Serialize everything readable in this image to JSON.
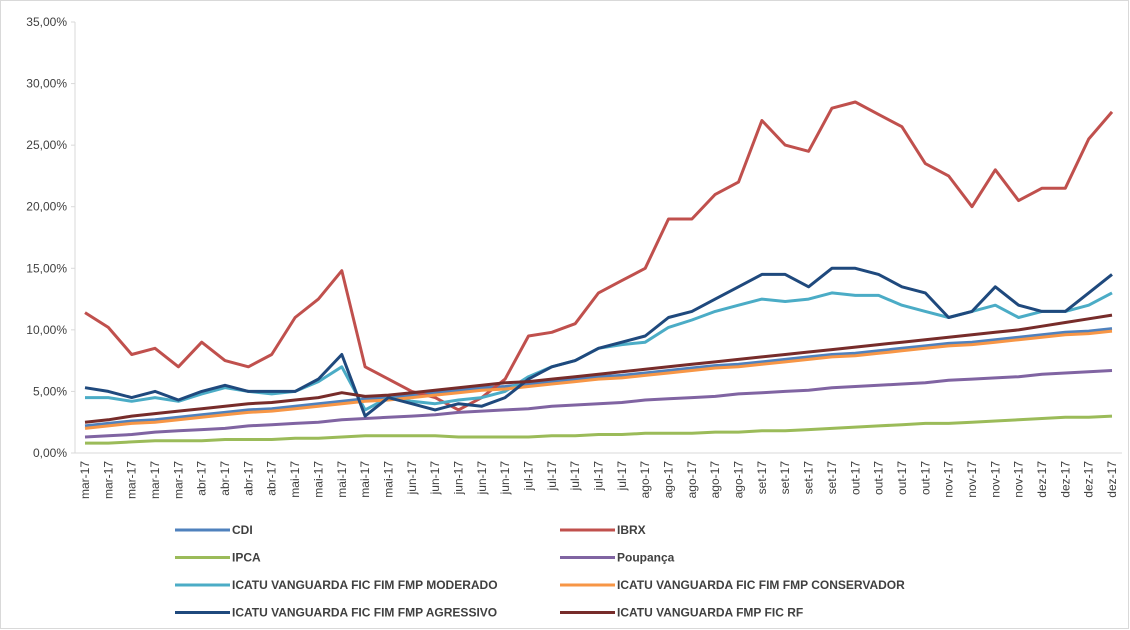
{
  "chart_data": {
    "type": "line",
    "categories": [
      "mar-17",
      "mar-17",
      "mar-17",
      "mar-17",
      "mar-17",
      "abr-17",
      "abr-17",
      "abr-17",
      "abr-17",
      "mai-17",
      "mai-17",
      "mai-17",
      "mai-17",
      "mai-17",
      "jun-17",
      "jun-17",
      "jun-17",
      "jun-17",
      "jun-17",
      "jul-17",
      "jul-17",
      "jul-17",
      "jul-17",
      "jul-17",
      "ago-17",
      "ago-17",
      "ago-17",
      "ago-17",
      "ago-17",
      "set-17",
      "set-17",
      "set-17",
      "set-17",
      "out-17",
      "out-17",
      "out-17",
      "out-17",
      "nov-17",
      "nov-17",
      "nov-17",
      "nov-17",
      "dez-17",
      "dez-17",
      "dez-17",
      "dez-17"
    ],
    "ylim": [
      0,
      35
    ],
    "yticks": [
      {
        "value": 0,
        "label": "0,00%"
      },
      {
        "value": 5,
        "label": "5,00%"
      },
      {
        "value": 10,
        "label": "10,00%"
      },
      {
        "value": 15,
        "label": "15,00%"
      },
      {
        "value": 20,
        "label": "20,00%"
      },
      {
        "value": 25,
        "label": "25,00%"
      },
      {
        "value": 30,
        "label": "30,00%"
      },
      {
        "value": 35,
        "label": "35,00%"
      }
    ],
    "grid": false,
    "series": [
      {
        "name": "CDI",
        "color": "#4f81bd",
        "values": [
          2.2,
          2.4,
          2.6,
          2.7,
          2.9,
          3.1,
          3.3,
          3.5,
          3.6,
          3.8,
          4.0,
          4.2,
          4.4,
          4.5,
          4.7,
          4.9,
          5.1,
          5.3,
          5.4,
          5.6,
          5.8,
          6.0,
          6.2,
          6.3,
          6.5,
          6.7,
          6.9,
          7.1,
          7.2,
          7.4,
          7.6,
          7.8,
          8.0,
          8.1,
          8.3,
          8.5,
          8.7,
          8.9,
          9.0,
          9.2,
          9.4,
          9.6,
          9.8,
          9.9,
          10.1
        ]
      },
      {
        "name": "IBRX",
        "color": "#c0504d",
        "values": [
          11.4,
          10.2,
          8.0,
          8.5,
          7.0,
          9.0,
          7.5,
          7.0,
          8.0,
          11.0,
          12.5,
          14.8,
          7.0,
          6.0,
          5.0,
          4.5,
          3.5,
          4.5,
          6.0,
          9.5,
          9.8,
          10.5,
          13.0,
          14.0,
          15.0,
          19.0,
          19.0,
          21.0,
          22.0,
          27.0,
          25.0,
          24.5,
          28.0,
          28.5,
          27.5,
          26.5,
          23.5,
          22.5,
          20.0,
          23.0,
          20.5,
          21.5,
          21.5,
          25.5,
          27.7
        ]
      },
      {
        "name": "IPCA",
        "color": "#9bbb59",
        "values": [
          0.8,
          0.8,
          0.9,
          1.0,
          1.0,
          1.0,
          1.1,
          1.1,
          1.1,
          1.2,
          1.2,
          1.3,
          1.4,
          1.4,
          1.4,
          1.4,
          1.3,
          1.3,
          1.3,
          1.3,
          1.4,
          1.4,
          1.5,
          1.5,
          1.6,
          1.6,
          1.6,
          1.7,
          1.7,
          1.8,
          1.8,
          1.9,
          2.0,
          2.1,
          2.2,
          2.3,
          2.4,
          2.4,
          2.5,
          2.6,
          2.7,
          2.8,
          2.9,
          2.9,
          3.0
        ]
      },
      {
        "name": "Poupança",
        "color": "#8064a2",
        "values": [
          1.3,
          1.4,
          1.5,
          1.7,
          1.8,
          1.9,
          2.0,
          2.2,
          2.3,
          2.4,
          2.5,
          2.7,
          2.8,
          2.9,
          3.0,
          3.1,
          3.3,
          3.4,
          3.5,
          3.6,
          3.8,
          3.9,
          4.0,
          4.1,
          4.3,
          4.4,
          4.5,
          4.6,
          4.8,
          4.9,
          5.0,
          5.1,
          5.3,
          5.4,
          5.5,
          5.6,
          5.7,
          5.9,
          6.0,
          6.1,
          6.2,
          6.4,
          6.5,
          6.6,
          6.7
        ]
      },
      {
        "name": "ICATU VANGUARDA FIC FIM FMP MODERADO",
        "color": "#4bacc6",
        "values": [
          4.5,
          4.5,
          4.2,
          4.5,
          4.2,
          4.8,
          5.3,
          5.0,
          4.8,
          5.0,
          5.8,
          7.0,
          3.5,
          4.5,
          4.2,
          4.0,
          4.3,
          4.5,
          5.0,
          6.2,
          7.0,
          7.5,
          8.5,
          8.8,
          9.0,
          10.2,
          10.8,
          11.5,
          12.0,
          12.5,
          12.3,
          12.5,
          13.0,
          12.8,
          12.8,
          12.0,
          11.5,
          11.0,
          11.5,
          12.0,
          11.0,
          11.5,
          11.5,
          12.0,
          13.0
        ]
      },
      {
        "name": "ICATU VANGUARDA FIC FIM FMP CONSERVADOR",
        "color": "#f79646",
        "values": [
          2.0,
          2.2,
          2.4,
          2.5,
          2.7,
          2.9,
          3.1,
          3.3,
          3.4,
          3.6,
          3.8,
          4.0,
          4.2,
          4.3,
          4.5,
          4.7,
          4.9,
          5.1,
          5.2,
          5.4,
          5.6,
          5.8,
          6.0,
          6.1,
          6.3,
          6.5,
          6.7,
          6.9,
          7.0,
          7.2,
          7.4,
          7.6,
          7.8,
          7.9,
          8.1,
          8.3,
          8.5,
          8.7,
          8.8,
          9.0,
          9.2,
          9.4,
          9.6,
          9.7,
          9.9
        ]
      },
      {
        "name": "ICATU VANGUARDA FIC FIM FMP AGRESSIVO",
        "color": "#1f497d",
        "values": [
          5.3,
          5.0,
          4.5,
          5.0,
          4.3,
          5.0,
          5.5,
          5.0,
          5.0,
          5.0,
          6.0,
          8.0,
          3.0,
          4.5,
          4.0,
          3.5,
          4.0,
          3.8,
          4.5,
          6.0,
          7.0,
          7.5,
          8.5,
          9.0,
          9.5,
          11.0,
          11.5,
          12.5,
          13.5,
          14.5,
          14.5,
          13.5,
          15.0,
          15.0,
          14.5,
          13.5,
          13.0,
          11.0,
          11.5,
          13.5,
          12.0,
          11.5,
          11.5,
          13.0,
          14.5
        ]
      },
      {
        "name": "ICATU VANGUARDA FMP FIC RF",
        "color": "#772c2a",
        "values": [
          2.5,
          2.7,
          3.0,
          3.2,
          3.4,
          3.6,
          3.8,
          4.0,
          4.1,
          4.3,
          4.5,
          4.9,
          4.6,
          4.7,
          4.9,
          5.1,
          5.3,
          5.5,
          5.7,
          5.8,
          6.0,
          6.2,
          6.4,
          6.6,
          6.8,
          7.0,
          7.2,
          7.4,
          7.6,
          7.8,
          8.0,
          8.2,
          8.4,
          8.6,
          8.8,
          9.0,
          9.2,
          9.4,
          9.6,
          9.8,
          10.0,
          10.3,
          10.6,
          10.9,
          11.2
        ]
      }
    ]
  }
}
